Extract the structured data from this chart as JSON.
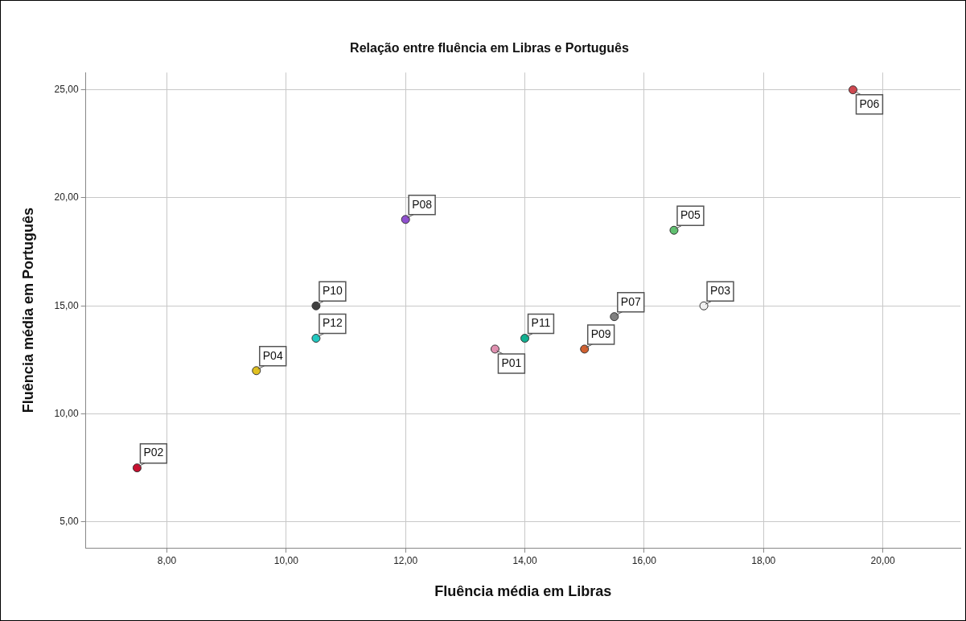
{
  "chart_data": {
    "type": "scatter",
    "title": "Relação entre fluência em Libras e Português",
    "xlabel": "Fluência média em Libras",
    "ylabel": "Fluência média em Português",
    "xlim": [
      6.64,
      21.3
    ],
    "xticks": [
      {
        "value": 8,
        "label": "8,00"
      },
      {
        "value": 10,
        "label": "10,00"
      },
      {
        "value": 12,
        "label": "12,00"
      },
      {
        "value": 14,
        "label": "14,00"
      },
      {
        "value": 16,
        "label": "16,00"
      },
      {
        "value": 18,
        "label": "18,00"
      },
      {
        "value": 20,
        "label": "20,00"
      }
    ],
    "ylim": [
      3.8,
      25.8
    ],
    "yticks": [
      {
        "value": 5,
        "label": "5,00"
      },
      {
        "value": 10,
        "label": "10,00"
      },
      {
        "value": 15,
        "label": "15,00"
      },
      {
        "value": 20,
        "label": "20,00"
      },
      {
        "value": 25,
        "label": "25,00"
      }
    ],
    "grid": true,
    "legend": false,
    "marker": "circle",
    "series": [
      {
        "name": "P01",
        "color": "#e090b0",
        "x": [
          13.5
        ],
        "values": [
          13
        ]
      },
      {
        "name": "P02",
        "color": "#c81030",
        "x": [
          7.5
        ],
        "values": [
          7.5
        ]
      },
      {
        "name": "P03",
        "color": "#f0f0f0",
        "x": [
          17
        ],
        "values": [
          15
        ]
      },
      {
        "name": "P04",
        "color": "#e0c020",
        "x": [
          9.5
        ],
        "values": [
          12
        ]
      },
      {
        "name": "P05",
        "color": "#60c070",
        "x": [
          16.5
        ],
        "values": [
          18.5
        ]
      },
      {
        "name": "P06",
        "color": "#d04850",
        "x": [
          19.5
        ],
        "values": [
          25
        ]
      },
      {
        "name": "P07",
        "color": "#808080",
        "x": [
          15.5
        ],
        "values": [
          14.5
        ]
      },
      {
        "name": "P08",
        "color": "#9050d0",
        "x": [
          12
        ],
        "values": [
          19
        ]
      },
      {
        "name": "P09",
        "color": "#d06030",
        "x": [
          15
        ],
        "values": [
          13
        ]
      },
      {
        "name": "P10",
        "color": "#404040",
        "x": [
          10.5
        ],
        "values": [
          15
        ]
      },
      {
        "name": "P11",
        "color": "#10b090",
        "x": [
          14
        ],
        "values": [
          13.5
        ]
      },
      {
        "name": "P12",
        "color": "#20c8c0",
        "x": [
          10.5
        ],
        "values": [
          13.5
        ]
      }
    ]
  }
}
